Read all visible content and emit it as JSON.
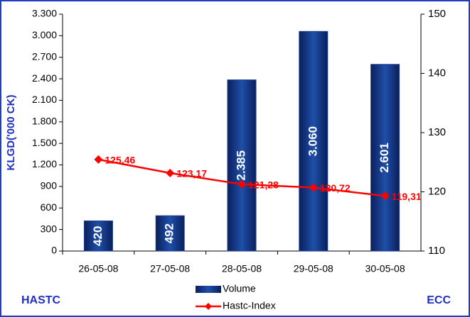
{
  "chart_data": {
    "type": "bar-line",
    "y_label": "KLGD('000 CK)",
    "left_note": "HASTC",
    "right_note": "ECC",
    "categories": [
      "26-05-08",
      "27-05-08",
      "28-05-08",
      "29-05-08",
      "30-05-08"
    ],
    "series": [
      {
        "name": "Volume",
        "color": "#1f3f8f",
        "type": "bar",
        "values": [
          420,
          492,
          2385,
          3060,
          2601
        ],
        "value_labels": [
          "420",
          "492",
          "2.385",
          "3.060",
          "2.601"
        ]
      },
      {
        "name": "Hastc-Index",
        "color": "#ff0000",
        "type": "line",
        "axis": "y2",
        "values": [
          125.46,
          123.17,
          121.28,
          120.72,
          119.31
        ],
        "value_labels": [
          "125,46",
          "123,17",
          "121,28",
          "120,72",
          "119,31"
        ]
      }
    ],
    "ylim": [
      0,
      3300
    ],
    "yticks": [
      0,
      300,
      600,
      900,
      {
        "value": 1200,
        "label": "1.200"
      },
      {
        "value": 1500,
        "label": "1.500"
      },
      {
        "value": 1800,
        "label": "1.800"
      },
      {
        "value": 2100,
        "label": "2.100"
      },
      {
        "value": 2400,
        "label": "2.400"
      },
      {
        "value": 2700,
        "label": "2.700"
      },
      {
        "value": 3000,
        "label": "3.000"
      },
      {
        "value": 3300,
        "label": "3.300"
      }
    ],
    "y2lim": [
      110,
      150
    ],
    "y2ticks": [
      110,
      120,
      130,
      140,
      150
    ]
  }
}
